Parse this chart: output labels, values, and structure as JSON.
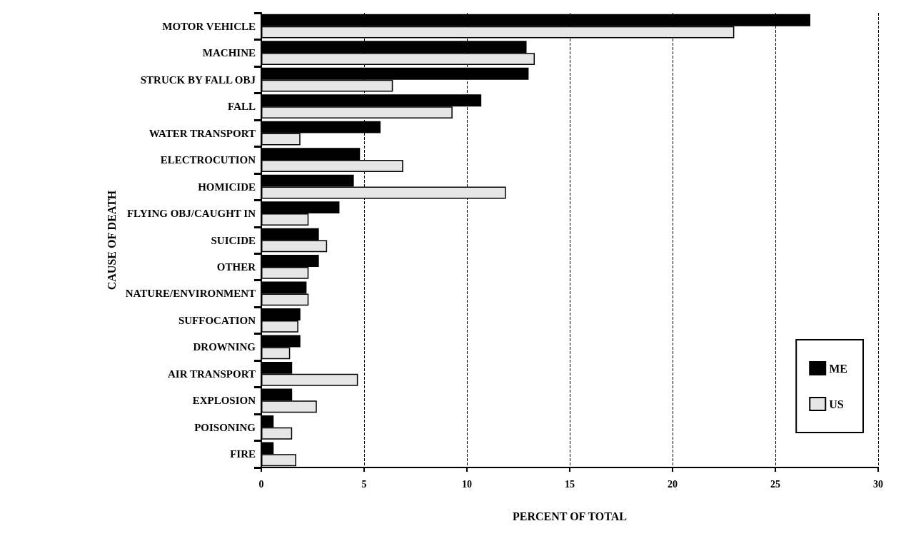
{
  "chart_data": {
    "type": "bar",
    "orientation": "horizontal",
    "xlabel": "PERCENT OF TOTAL",
    "ylabel": "CAUSE OF DEATH",
    "categories": [
      "MOTOR VEHICLE",
      "MACHINE",
      "STRUCK BY FALL OBJ",
      "FALL",
      "WATER TRANSPORT",
      "ELECTROCUTION",
      "HOMICIDE",
      "FLYING OBJ/CAUGHT IN",
      "SUICIDE",
      "OTHER",
      "NATURE/ENVIRONMENT",
      "SUFFOCATION",
      "DROWNING",
      "AIR TRANSPORT",
      "EXPLOSION",
      "POISONING",
      "FIRE"
    ],
    "series": [
      {
        "name": "ME",
        "color": "#000000",
        "values": [
          26.7,
          12.9,
          13.0,
          10.7,
          5.8,
          4.8,
          4.5,
          3.8,
          2.8,
          2.8,
          2.2,
          1.9,
          1.9,
          1.5,
          1.5,
          0.6,
          0.6
        ]
      },
      {
        "name": "US",
        "color": "#e6e6e6",
        "values": [
          23.0,
          13.3,
          6.4,
          9.3,
          1.9,
          6.9,
          11.9,
          2.3,
          3.2,
          2.3,
          2.3,
          1.8,
          1.4,
          4.7,
          2.7,
          1.5,
          1.7
        ]
      }
    ],
    "xlim": [
      0,
      30
    ],
    "xticks": [
      0,
      5,
      10,
      15,
      20,
      25,
      30
    ],
    "grid": "x",
    "legend": "bottom right"
  }
}
